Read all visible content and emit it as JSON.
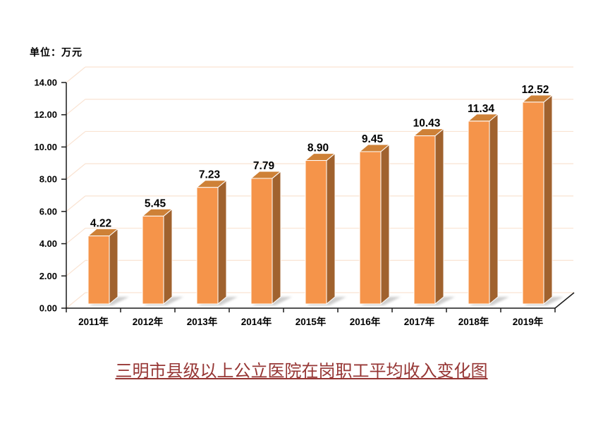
{
  "unit_label": "单位：万元",
  "title": {
    "text": "三明市县级以上公立医院在岗职工平均收入变化图",
    "color": "#963634"
  },
  "chart_data": {
    "type": "bar",
    "style": "3d-column",
    "title": "三明市县级以上公立医院在岗职工平均收入变化图",
    "unit_label": "单位：万元",
    "categories": [
      "2011年",
      "2012年",
      "2013年",
      "2014年",
      "2015年",
      "2016年",
      "2017年",
      "2018年",
      "2019年"
    ],
    "values": [
      4.22,
      5.45,
      7.23,
      7.79,
      8.9,
      9.45,
      10.43,
      11.34,
      12.52
    ],
    "value_labels": [
      "4.22",
      "5.45",
      "7.23",
      "7.79",
      "8.90",
      "9.45",
      "10.43",
      "11.34",
      "12.52"
    ],
    "y_ticks": [
      "0.00",
      "2.00",
      "4.00",
      "6.00",
      "8.00",
      "10.00",
      "12.00",
      "14.00"
    ],
    "ylim": [
      0,
      14
    ],
    "y_step": 2,
    "xlabel": "",
    "ylabel": "",
    "grid": true,
    "legend": "none",
    "colors": {
      "bar_front": "#F5944A",
      "bar_top": "#CE8137",
      "bar_side": "#A0622E",
      "bar_edge": "#FFFFFF",
      "gridline": "#FAE3D2",
      "axis": "#1a1a1a",
      "label": "#000000",
      "title": "#963634",
      "shadow": "#9c9c9c"
    }
  }
}
